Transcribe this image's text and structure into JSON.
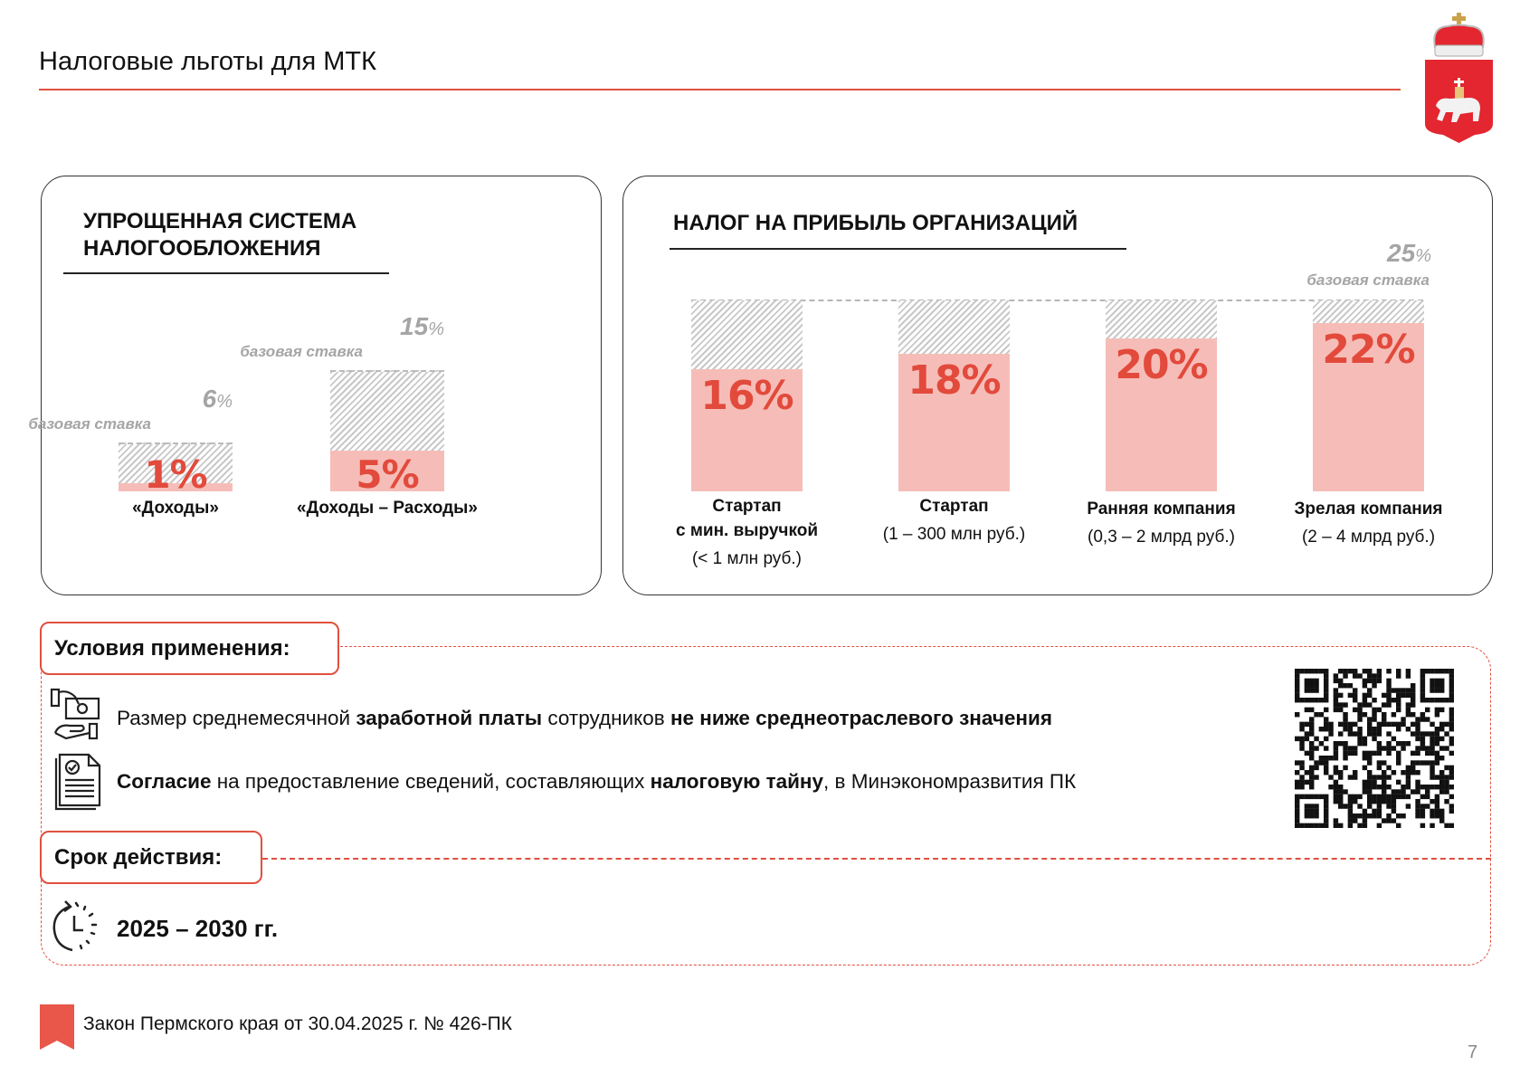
{
  "header": {
    "title": "Налоговые льготы для МТК"
  },
  "colors": {
    "accent": "#e0503f",
    "bar_fill": "#f6bdb8",
    "value_text": "#e24a3c",
    "base_text": "#a5a5a5"
  },
  "usn": {
    "heading_line1": "УПРОЩЕННАЯ СИСТЕМА",
    "heading_line2": "НАЛОГООБЛОЖЕНИЯ",
    "base_label": "базовая ставка",
    "bars": [
      {
        "label": "«Доходы»",
        "value": 1,
        "value_text": "1%",
        "base": 6,
        "base_num": "6",
        "base_unit": "%"
      },
      {
        "label": "«Доходы – Расходы»",
        "value": 5,
        "value_text": "5%",
        "base": 15,
        "base_num": "15",
        "base_unit": "%"
      }
    ]
  },
  "profit_tax": {
    "heading": "НАЛОГ НА ПРИБЫЛЬ ОРГАНИЗАЦИЙ",
    "base_num": "25",
    "base_unit": "%",
    "base_value": 25,
    "base_label": "базовая ставка",
    "bars": [
      {
        "value": 16,
        "value_text": "16%",
        "title": "Стартап",
        "title2": "с мин. выручкой",
        "sub": "(< 1 млн руб.)"
      },
      {
        "value": 18,
        "value_text": "18%",
        "title": "Стартап",
        "sub": "(1 – 300 млн руб.)"
      },
      {
        "value": 20,
        "value_text": "20%",
        "title": "Ранняя компания",
        "sub": "(0,3 – 2 млрд руб.)"
      },
      {
        "value": 22,
        "value_text": "22%",
        "title": "Зрелая компания",
        "sub": "(2 – 4 млрд руб.)"
      }
    ]
  },
  "conditions": {
    "title": "Условия применения:",
    "item1": {
      "p1": "Размер среднемесячной ",
      "b1": "заработной платы",
      "p2": " сотрудников ",
      "b2": "не ниже среднеотраслевого значения"
    },
    "item2": {
      "b1": "Согласие",
      "p1": " на предоставление сведений, составляющих ",
      "b2": "налоговую тайну",
      "p2": ", в Минэкономразвития ПК"
    }
  },
  "period": {
    "title": "Срок действия:",
    "value": "2025 – 2030 гг."
  },
  "footer": {
    "law": "Закон Пермского края от 30.04.2025 г. № 426-ПК",
    "page": "7"
  }
}
